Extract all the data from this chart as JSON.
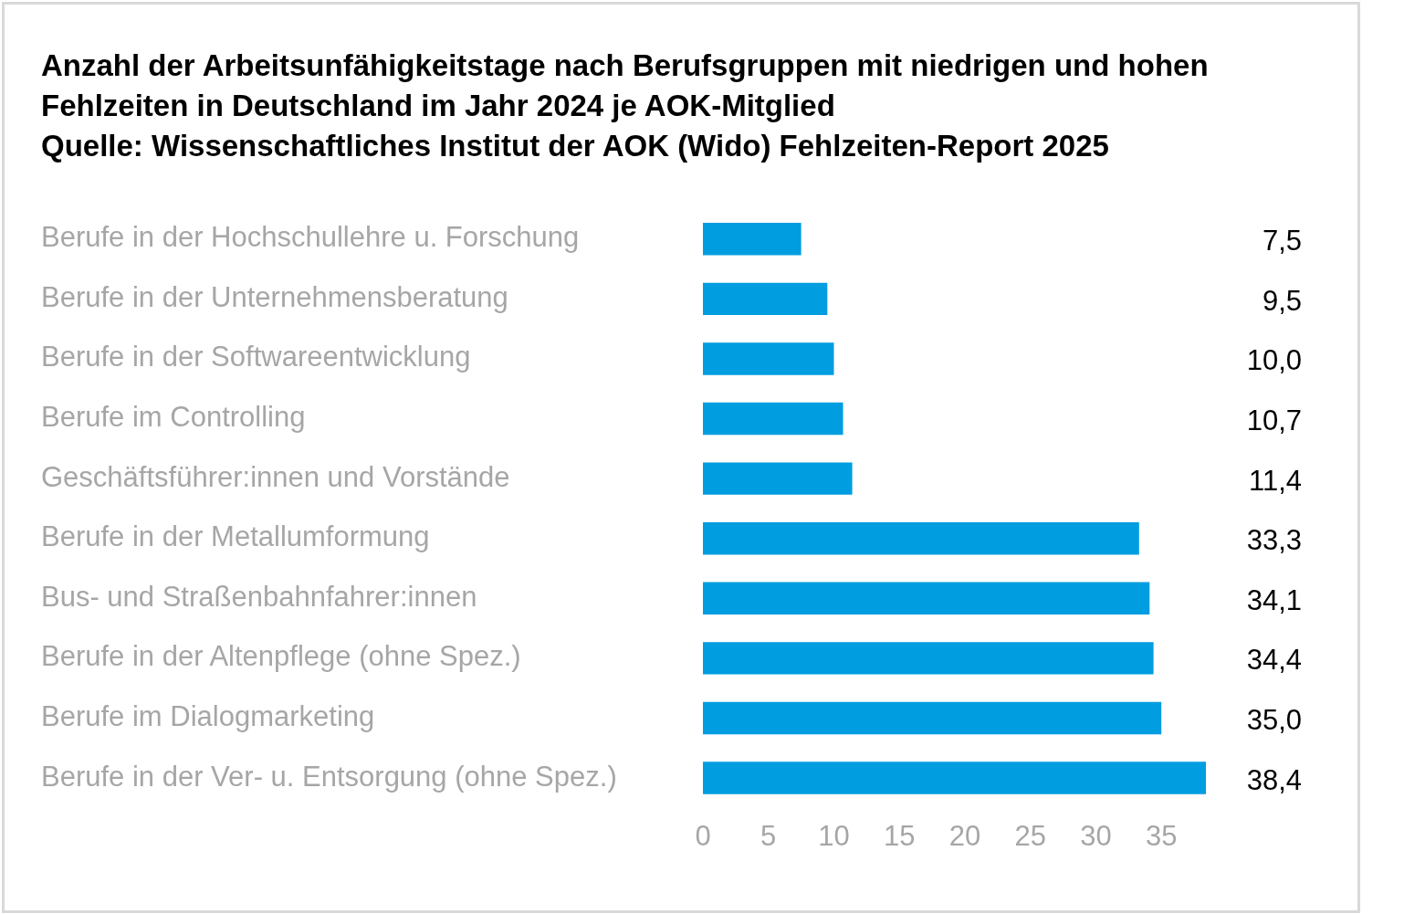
{
  "chart_data": {
    "type": "bar",
    "orientation": "horizontal",
    "title": "Anzahl der Arbeitsunfähigkeitstage nach Berufsgruppen mit niedrigen und hohen Fehlzeiten in Deutschland im Jahr 2024 je AOK-Mitglied\nQuelle: Wissenschaftliches Institut der AOK (Wido) Fehlzeiten-Report 2025",
    "categories": [
      "Berufe in der Hochschullehre u. Forschung",
      "Berufe in der Unternehmensberatung",
      "Berufe in der Softwareentwicklung",
      "Berufe im Controlling",
      "Geschäftsführer:innen und Vorstände",
      "Berufe in der Metallumformung",
      "Bus- und Straßenbahnfahrer:innen",
      "Berufe in der Altenpflege (ohne Spez.)",
      "Berufe im Dialogmarketing",
      "Berufe in der Ver- u. Entsorgung (ohne Spez.)"
    ],
    "values": [
      7.5,
      9.5,
      10.0,
      10.7,
      11.4,
      33.3,
      34.1,
      34.4,
      35.0,
      38.4
    ],
    "value_labels": [
      "7,5",
      "9,5",
      "10,0",
      "10,7",
      "11,4",
      "33,3",
      "34,1",
      "34,4",
      "35,0",
      "38,4"
    ],
    "color": "#009de0",
    "xlim": [
      0,
      38.4
    ],
    "xticks": [
      0,
      5,
      10,
      15,
      20,
      25,
      30,
      35
    ],
    "grid": false,
    "legend": false
  }
}
